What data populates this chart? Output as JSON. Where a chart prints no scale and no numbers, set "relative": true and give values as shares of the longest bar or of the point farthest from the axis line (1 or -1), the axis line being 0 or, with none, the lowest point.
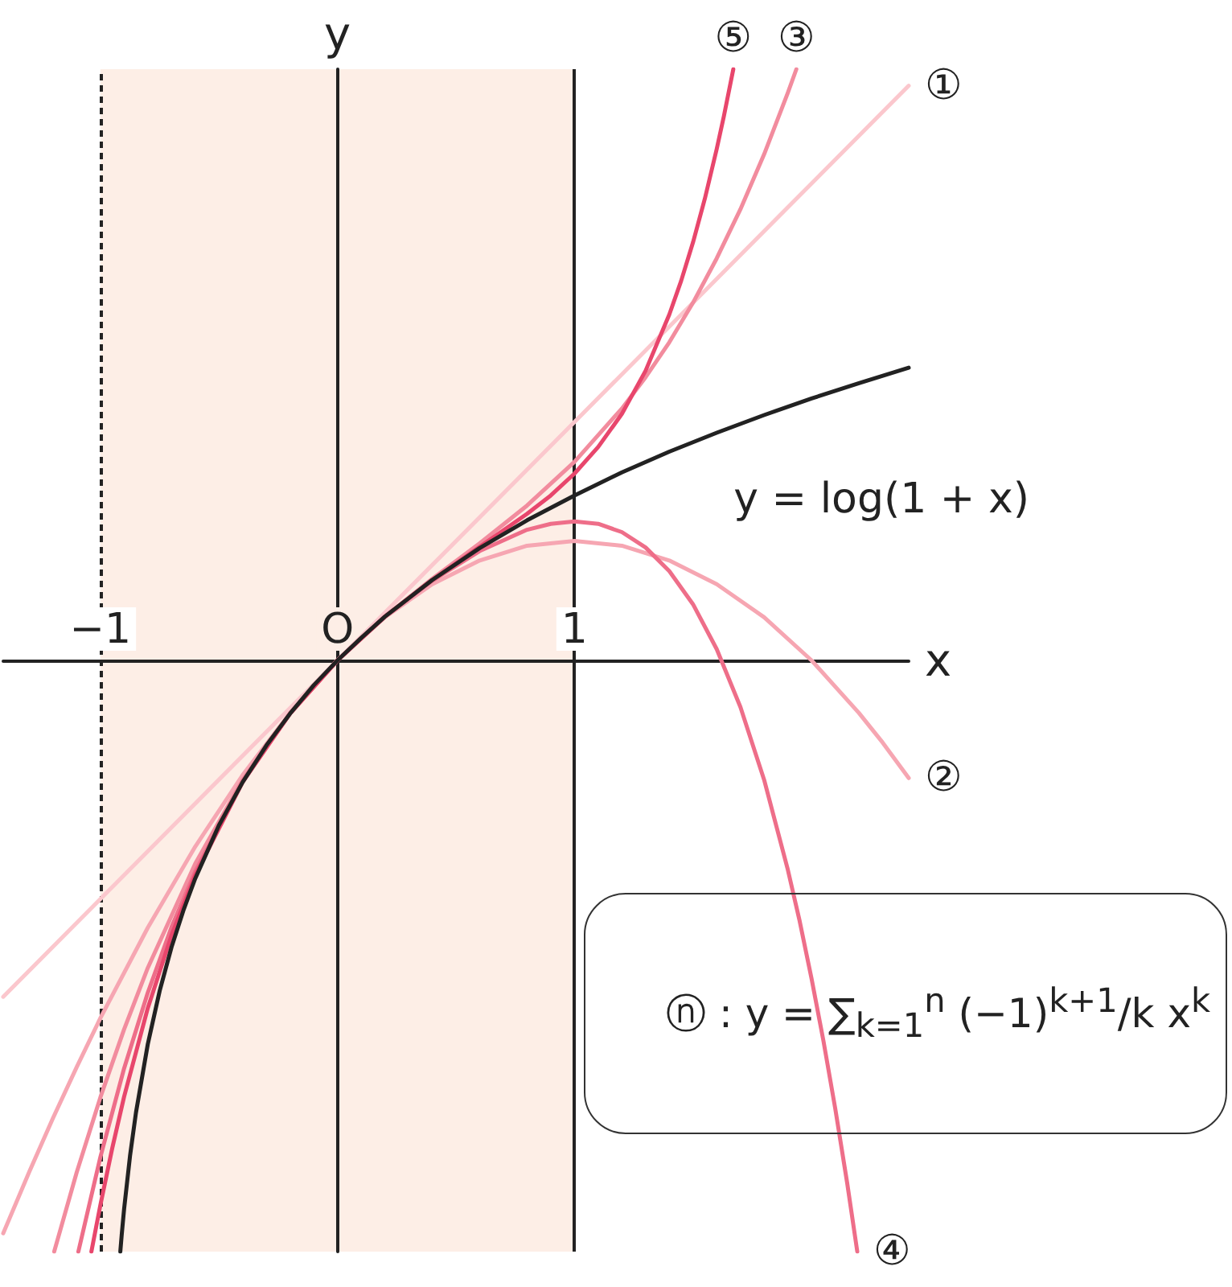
{
  "chart_data": {
    "type": "line",
    "relative": true,
    "xlabel": "x",
    "ylabel": "y",
    "xlim": [
      -1.41,
      2.41
    ],
    "xticks": [
      {
        "value": -1,
        "label": "−1"
      },
      {
        "value": 0,
        "label": "O"
      },
      1
    ],
    "tick_labels": "x",
    "marker": "none",
    "bands": [
      {
        "axis": "x",
        "from": -1,
        "to": 1,
        "color": "#fdeee6"
      }
    ],
    "ref_lines": [
      {
        "axis": "x",
        "value": -1,
        "line_style": "dashed",
        "color": "#222222"
      },
      {
        "axis": "x",
        "value": 1,
        "color": "#222222"
      }
    ],
    "annotations": [
      "ⓝ : y = ∑$_{k=1}$$^{n}$ (−1)$^{k+1}$/k x$^{k}$"
    ],
    "series": [
      {
        "name": "①",
        "color": "#fbc7cd",
        "x": [
          -1.41,
          0,
          2.41
        ],
        "values": [
          -0.569,
          0,
          0.972
        ]
      },
      {
        "name": "②",
        "color": "#f6a6b2",
        "x": [
          -1.41,
          -1.3,
          -1.2,
          -1.1,
          -1,
          -0.8,
          -0.6,
          -0.4,
          -0.2,
          0,
          0.2,
          0.4,
          0.6,
          0.8,
          1,
          1.2,
          1.4,
          1.6,
          1.8,
          2,
          2.2,
          2.3,
          2.41
        ],
        "values": [
          -0.969,
          -0.865,
          -0.774,
          -0.688,
          -0.605,
          -0.452,
          -0.315,
          -0.194,
          -0.089,
          0,
          0.073,
          0.129,
          0.169,
          0.194,
          0.202,
          0.194,
          0.169,
          0.129,
          0.073,
          0,
          -0.089,
          -0.139,
          -0.199
        ]
      },
      {
        "name": "③",
        "color": "#f28c9e",
        "x": [
          -1.195,
          -1.1,
          -1,
          -0.9,
          -0.8,
          -0.6,
          -0.4,
          -0.2,
          0,
          0.2,
          0.4,
          0.6,
          0.8,
          1,
          1.2,
          1.3,
          1.4,
          1.5,
          1.6,
          1.7,
          1.8,
          1.9,
          1.936
        ],
        "values": [
          -1,
          -0.866,
          -0.739,
          -0.624,
          -0.52,
          -0.344,
          -0.202,
          -0.09,
          0,
          0.074,
          0.138,
          0.198,
          0.262,
          0.336,
          0.426,
          0.479,
          0.538,
          0.605,
          0.68,
          0.763,
          0.856,
          0.96,
          1
        ]
      },
      {
        "name": "④",
        "color": "#ee6e89",
        "x": [
          -1.093,
          -1,
          -0.9,
          -0.8,
          -0.7,
          -0.6,
          -0.4,
          -0.2,
          0,
          0.2,
          0.4,
          0.6,
          0.8,
          0.9,
          1,
          1.1,
          1.2,
          1.3,
          1.4,
          1.5,
          1.6,
          1.7,
          1.8,
          1.9,
          1.95,
          2,
          2.05,
          2.1,
          2.15,
          2.193
        ],
        "values": [
          -1,
          -0.84,
          -0.69,
          -0.562,
          -0.451,
          -0.357,
          -0.205,
          -0.09,
          0,
          0.074,
          0.135,
          0.185,
          0.221,
          0.231,
          0.235,
          0.231,
          0.217,
          0.191,
          0.151,
          0.095,
          0.019,
          -0.079,
          -0.202,
          -0.354,
          -0.441,
          -0.538,
          -0.643,
          -0.758,
          -0.883,
          -1
        ]
      },
      {
        "name": "⑤",
        "color": "#e8466c",
        "x": [
          -1.038,
          -1,
          -0.95,
          -0.9,
          -0.8,
          -0.7,
          -0.6,
          -0.4,
          -0.2,
          0,
          0.2,
          0.4,
          0.6,
          0.8,
          0.9,
          1,
          1.1,
          1.2,
          1.3,
          1.4,
          1.45,
          1.5,
          1.55,
          1.6,
          1.63,
          1.67
        ],
        "values": [
          -1,
          -0.921,
          -0.825,
          -0.738,
          -0.588,
          -0.465,
          -0.363,
          -0.206,
          -0.09,
          0,
          0.074,
          0.136,
          0.192,
          0.248,
          0.279,
          0.316,
          0.361,
          0.417,
          0.49,
          0.585,
          0.642,
          0.707,
          0.781,
          0.865,
          0.92,
          1
        ]
      },
      {
        "name": "y = log(1 + x)",
        "color": "#222222",
        "x": [
          -0.916,
          -0.91,
          -0.9,
          -0.875,
          -0.85,
          -0.8,
          -0.75,
          -0.7,
          -0.65,
          -0.6,
          -0.5,
          -0.4,
          -0.3,
          -0.2,
          -0.1,
          0,
          0.1,
          0.2,
          0.4,
          0.6,
          0.8,
          1,
          1.2,
          1.4,
          1.6,
          1.8,
          2,
          2.2,
          2.41
        ],
        "values": [
          -1,
          -0.971,
          -0.928,
          -0.838,
          -0.765,
          -0.649,
          -0.559,
          -0.485,
          -0.423,
          -0.369,
          -0.279,
          -0.206,
          -0.144,
          -0.09,
          -0.042,
          0,
          0.038,
          0.074,
          0.136,
          0.19,
          0.237,
          0.279,
          0.318,
          0.353,
          0.385,
          0.415,
          0.443,
          0.469,
          0.495
        ]
      }
    ]
  }
}
